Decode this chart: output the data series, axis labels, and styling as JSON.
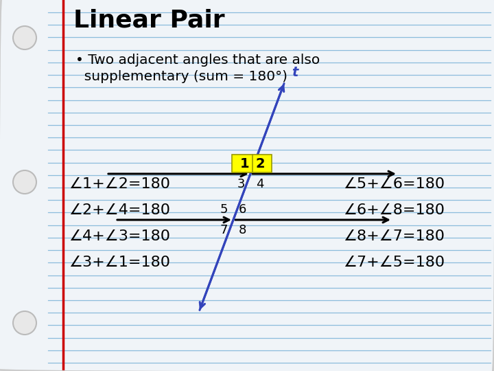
{
  "title": "Linear Pair",
  "bullet_line1": "• Two adjacent angles that are also",
  "bullet_line2": "  supplementary (sum = 180°)",
  "background_color": "#f0f4f8",
  "line_color": "#8bbcdc",
  "red_line_color": "#cc0000",
  "title_color": "#000000",
  "text_color": "#000000",
  "blue_color": "#3344bb",
  "arrow_color": "#000000",
  "highlight_color": "#ffff00",
  "left_equations": [
    "∠1+∠2=180",
    "∠2+∠4=180",
    "∠4+∠3=180",
    "∠3+∠1=180"
  ],
  "right_equations": [
    "∠5+∠6=180",
    "∠6+∠8=180",
    "∠8+∠7=180",
    "∠7+∠5=180"
  ],
  "num_lines": 28,
  "hole_color": "#e8e8e8",
  "hole_border": "#bbbbbb",
  "border_color": "#cccccc"
}
